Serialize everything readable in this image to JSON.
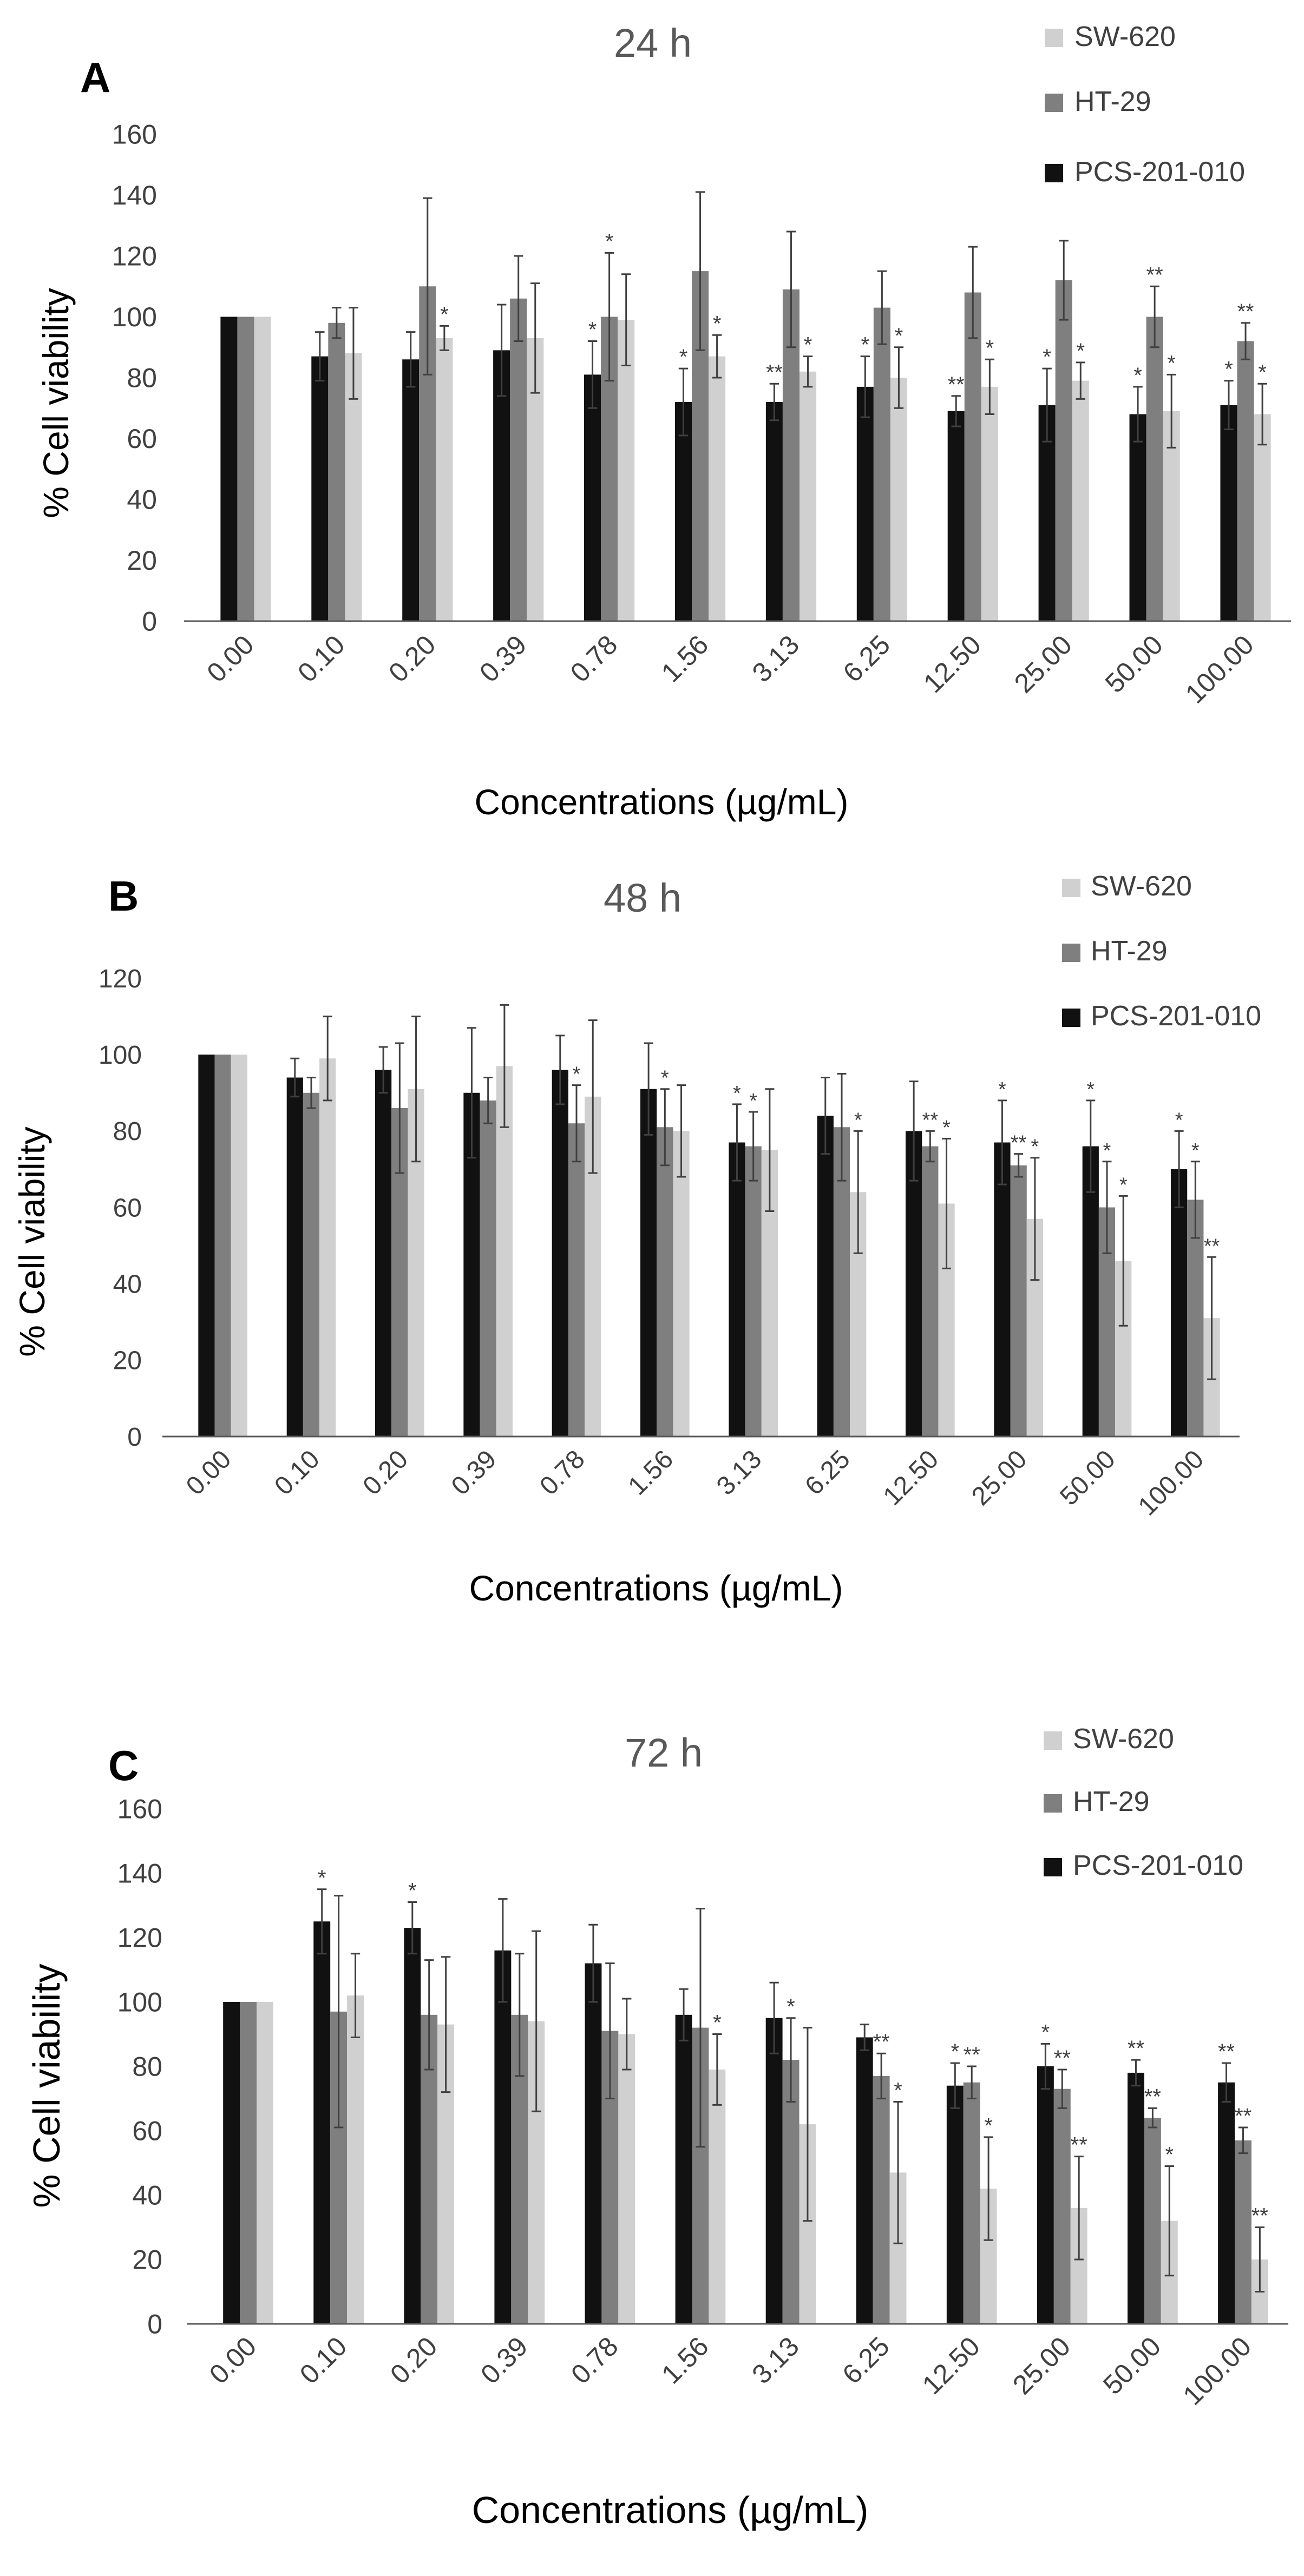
{
  "figure": {
    "xlabel": "Concentrations (µg/mL)",
    "ylabel": "% Cell viability",
    "categories": [
      "0.00",
      "0.10",
      "0.20",
      "0.39",
      "0.78",
      "1.56",
      "3.13",
      "6.25",
      "12.50",
      "25.00",
      "50.00",
      "100.00"
    ],
    "legend": [
      "SW-620",
      "HT-29",
      "PCS-201-010"
    ],
    "colors": {
      "PCS-201-010": "#111111",
      "HT-29": "#7f7f7f",
      "SW-620": "#d0d0d0",
      "axis": "#595959",
      "text": "#404040"
    }
  },
  "chart_data": [
    {
      "type": "bar",
      "panel": "A",
      "title": "24 h",
      "categories": [
        "0.00",
        "0.10",
        "0.20",
        "0.39",
        "0.78",
        "1.56",
        "3.13",
        "6.25",
        "12.50",
        "25.00",
        "50.00",
        "100.00"
      ],
      "ylim": [
        0,
        160
      ],
      "yticks": [
        0,
        20,
        40,
        60,
        80,
        100,
        120,
        140,
        160
      ],
      "xlabel": "Concentrations (µg/mL)",
      "ylabel": "% Cell viability",
      "series": [
        {
          "name": "PCS-201-010",
          "values": [
            100,
            87,
            86,
            89,
            81,
            72,
            72,
            77,
            69,
            71,
            68,
            71
          ],
          "errors": [
            0,
            8,
            9,
            15,
            11,
            11,
            6,
            10,
            5,
            12,
            9,
            8
          ],
          "sig": [
            "",
            "",
            "",
            "",
            "*",
            "*",
            "**",
            "*",
            "**",
            "*",
            "*",
            "*"
          ]
        },
        {
          "name": "HT-29",
          "values": [
            100,
            98,
            110,
            106,
            100,
            115,
            109,
            103,
            108,
            112,
            100,
            92
          ],
          "errors": [
            0,
            5,
            29,
            14,
            21,
            26,
            19,
            12,
            15,
            13,
            10,
            6
          ],
          "sig": [
            "",
            "",
            "",
            "",
            "*",
            "",
            "",
            "",
            "",
            "",
            "**",
            "**"
          ]
        },
        {
          "name": "SW-620",
          "values": [
            100,
            88,
            93,
            93,
            99,
            87,
            82,
            80,
            77,
            79,
            69,
            68
          ],
          "errors": [
            0,
            15,
            4,
            18,
            15,
            7,
            5,
            10,
            9,
            6,
            12,
            10
          ],
          "sig": [
            "",
            "",
            "*",
            "",
            "",
            "*",
            "*",
            "*",
            "*",
            "*",
            "*",
            "*"
          ]
        }
      ]
    },
    {
      "type": "bar",
      "panel": "B",
      "title": "48 h",
      "categories": [
        "0.00",
        "0.10",
        "0.20",
        "0.39",
        "0.78",
        "1.56",
        "3.13",
        "6.25",
        "12.50",
        "25.00",
        "50.00",
        "100.00"
      ],
      "ylim": [
        0,
        120
      ],
      "yticks": [
        0,
        20,
        40,
        60,
        80,
        100,
        120
      ],
      "xlabel": "Concentrations (µg/mL)",
      "ylabel": "% Cell viability",
      "series": [
        {
          "name": "PCS-201-010",
          "values": [
            100,
            94,
            96,
            90,
            96,
            91,
            77,
            84,
            80,
            77,
            76,
            70
          ],
          "errors": [
            0,
            5,
            6,
            17,
            9,
            12,
            10,
            10,
            13,
            11,
            12,
            10
          ],
          "sig": [
            "",
            "",
            "",
            "",
            "",
            "",
            "*",
            "",
            "",
            "*",
            "*",
            "*"
          ]
        },
        {
          "name": "HT-29",
          "values": [
            100,
            90,
            86,
            88,
            82,
            81,
            76,
            81,
            76,
            71,
            60,
            62
          ],
          "errors": [
            0,
            4,
            17,
            6,
            10,
            10,
            9,
            14,
            4,
            3,
            12,
            10
          ],
          "sig": [
            "",
            "",
            "",
            "",
            "*",
            "*",
            "*",
            "",
            "**",
            "**",
            "*",
            "*"
          ]
        },
        {
          "name": "SW-620",
          "values": [
            100,
            99,
            91,
            97,
            89,
            80,
            75,
            64,
            61,
            57,
            46,
            31
          ],
          "errors": [
            0,
            11,
            19,
            16,
            20,
            12,
            16,
            16,
            17,
            16,
            17,
            16
          ],
          "sig": [
            "",
            "",
            "",
            "",
            "",
            "",
            "",
            "*",
            "*",
            "*",
            "*",
            "**"
          ]
        }
      ]
    },
    {
      "type": "bar",
      "panel": "C",
      "title": "72 h",
      "categories": [
        "0.00",
        "0.10",
        "0.20",
        "0.39",
        "0.78",
        "1.56",
        "3.13",
        "6.25",
        "12.50",
        "25.00",
        "50.00",
        "100.00"
      ],
      "ylim": [
        0,
        160
      ],
      "yticks": [
        0,
        20,
        40,
        60,
        80,
        100,
        120,
        140,
        160
      ],
      "xlabel": "Concentrations (µg/mL)",
      "ylabel": "% Cell viability",
      "series": [
        {
          "name": "PCS-201-010",
          "values": [
            100,
            125,
            123,
            116,
            112,
            96,
            95,
            89,
            74,
            80,
            78,
            75
          ],
          "errors": [
            0,
            10,
            8,
            16,
            12,
            8,
            11,
            4,
            7,
            7,
            4,
            6
          ],
          "sig": [
            "",
            "*",
            "*",
            "",
            "",
            "",
            "",
            "",
            "*",
            "*",
            "**",
            "**"
          ]
        },
        {
          "name": "HT-29",
          "values": [
            100,
            97,
            96,
            96,
            91,
            92,
            82,
            77,
            75,
            73,
            64,
            57
          ],
          "errors": [
            0,
            36,
            17,
            19,
            21,
            37,
            13,
            7,
            5,
            6,
            3,
            4
          ],
          "sig": [
            "",
            "",
            "",
            "",
            "",
            "",
            "*",
            "**",
            "**",
            "**",
            "**",
            "**"
          ]
        },
        {
          "name": "SW-620",
          "values": [
            100,
            102,
            93,
            94,
            90,
            79,
            62,
            47,
            42,
            36,
            32,
            20
          ],
          "errors": [
            0,
            13,
            21,
            28,
            11,
            11,
            30,
            22,
            16,
            16,
            17,
            10
          ],
          "sig": [
            "",
            "",
            "",
            "",
            "",
            "*",
            "",
            "*",
            "*",
            "**",
            "*",
            "**"
          ]
        }
      ]
    }
  ]
}
